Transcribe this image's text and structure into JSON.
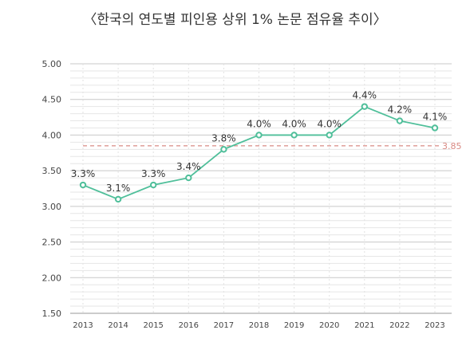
{
  "chart_data": {
    "type": "line",
    "title": "〈한국의 연도별 피인용 상위 1% 논문 점유율 추이〉",
    "x": [
      "2013",
      "2014",
      "2015",
      "2016",
      "2017",
      "2018",
      "2019",
      "2020",
      "2021",
      "2022",
      "2023"
    ],
    "series": [
      {
        "values": [
          3.3,
          3.1,
          3.3,
          3.4,
          3.8,
          4.0,
          4.0,
          4.0,
          4.4,
          4.2,
          4.1
        ],
        "labels": [
          "3.3%",
          "3.1%",
          "3.3%",
          "3.4%",
          "3.8%",
          "4.0%",
          "4.0%",
          "4.0%",
          "4.4%",
          "4.2%",
          "4.1%"
        ],
        "color": "#4fbf9a"
      }
    ],
    "y_ticks": [
      "5.00",
      "4.50",
      "4.00",
      "3.50",
      "3.00",
      "2.50",
      "2.00",
      "1.50"
    ],
    "ylim": [
      1.5,
      5.0
    ],
    "reference_line": {
      "value": 3.85,
      "label": "3.85",
      "color": "#d98a84"
    },
    "grid": true,
    "legend": "none"
  }
}
